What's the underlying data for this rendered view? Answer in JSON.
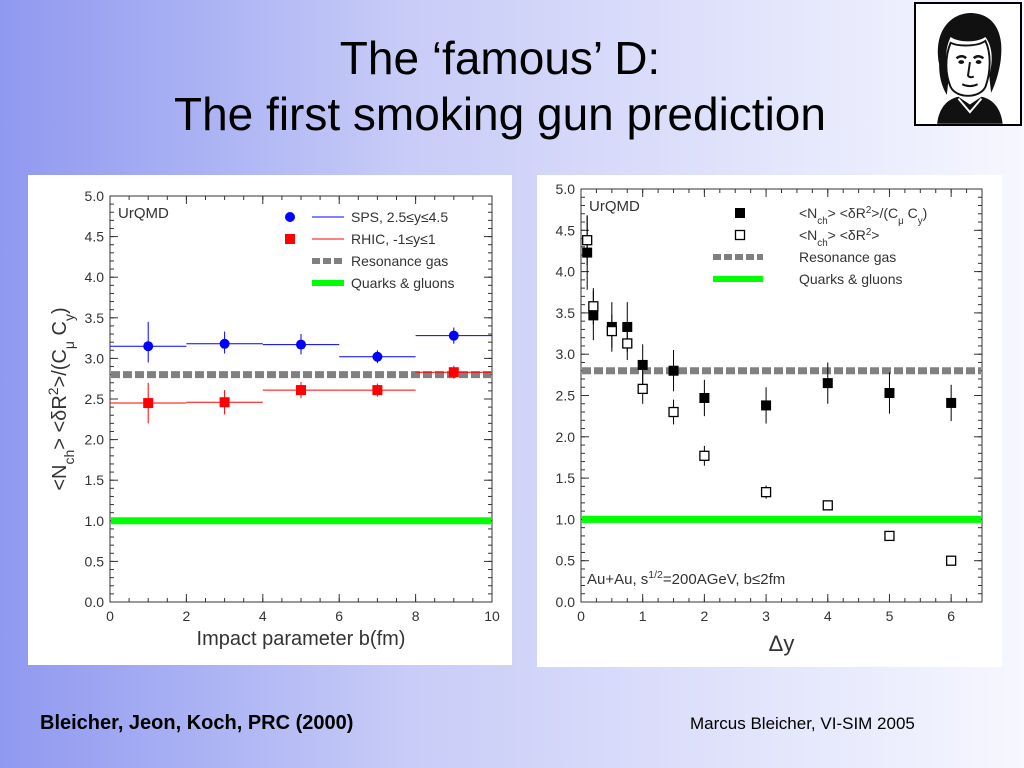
{
  "slide": {
    "title_line1": "The ‘famous’ D:",
    "title_line2": "The first smoking gun prediction",
    "citation": "Bleicher, Jeon, Koch, PRC (2000)",
    "footer": "Marcus Bleicher, VI-SIM 2005",
    "logo_icon": "goethe-portrait-icon"
  },
  "chart_data": [
    {
      "type": "scatter",
      "label": "UrQMD",
      "xlabel": "Impact parameter b(fm)",
      "ylabel": "<Nch> <δR2>/(Cμ Cy)",
      "xlim": [
        0,
        10
      ],
      "ylim": [
        0,
        5
      ],
      "xticks": [
        0,
        2,
        4,
        6,
        8,
        10
      ],
      "yticks": [
        "0.0",
        "0.5",
        "1.0",
        "1.5",
        "2.0",
        "2.5",
        "3.0",
        "3.5",
        "4.0",
        "4.5",
        "5.0"
      ],
      "grid": false,
      "legend_position": "top-right",
      "series": [
        {
          "name": "SPS, 2.5<y<4.5",
          "color": "#0000ff",
          "marker": "circle",
          "points": [
            {
              "x": 1,
              "y": 3.15,
              "xerr": 1,
              "yerr_low": 0.2,
              "yerr_high": 0.3
            },
            {
              "x": 3,
              "y": 3.18,
              "xerr": 1,
              "yerr_low": 0.12,
              "yerr_high": 0.15
            },
            {
              "x": 5,
              "y": 3.17,
              "xerr": 1,
              "yerr_low": 0.12,
              "yerr_high": 0.13
            },
            {
              "x": 7,
              "y": 3.02,
              "xerr": 1,
              "yerr_low": 0.08,
              "yerr_high": 0.08
            },
            {
              "x": 9,
              "y": 3.28,
              "xerr": 1,
              "yerr_low": 0.1,
              "yerr_high": 0.1
            }
          ]
        },
        {
          "name": "RHIC, -1<y<1",
          "color": "#ff0000",
          "marker": "square",
          "points": [
            {
              "x": 1,
              "y": 2.45,
              "xerr": 1,
              "yerr_low": 0.25,
              "yerr_high": 0.25
            },
            {
              "x": 3,
              "y": 2.46,
              "xerr": 1,
              "yerr_low": 0.15,
              "yerr_high": 0.15
            },
            {
              "x": 5,
              "y": 2.61,
              "xerr": 1,
              "yerr_low": 0.1,
              "yerr_high": 0.1
            },
            {
              "x": 7,
              "y": 2.61,
              "xerr": 1,
              "yerr_low": 0.08,
              "yerr_high": 0.08
            },
            {
              "x": 9,
              "y": 2.83,
              "xerr": 1,
              "yerr_low": 0.08,
              "yerr_high": 0.08
            }
          ]
        }
      ],
      "reference_lines": [
        {
          "name": "Resonance gas",
          "y": 2.8,
          "color": "#808080",
          "style": "dashed"
        },
        {
          "name": "Quarks & gluons",
          "y": 1.0,
          "color": "#00ff00",
          "style": "solid"
        }
      ]
    },
    {
      "type": "scatter",
      "label": "UrQMD",
      "annotation": "Au+Au, s1/2=200AGeV, b<2fm",
      "xlabel": "Δy",
      "xlim": [
        0,
        6.5
      ],
      "ylim": [
        0,
        5
      ],
      "xticks": [
        0,
        1,
        2,
        3,
        4,
        5,
        6
      ],
      "yticks": [
        "0.0",
        "0.5",
        "1.0",
        "1.5",
        "2.0",
        "2.5",
        "3.0",
        "3.5",
        "4.0",
        "4.5",
        "5.0"
      ],
      "grid": false,
      "legend_position": "top-right",
      "series": [
        {
          "name": "<Nch> <δR2>/(Cμ Cy)",
          "color": "#000000",
          "marker": "filled-square",
          "points": [
            {
              "x": 0.1,
              "y": 4.23,
              "yerr_low": 0.45,
              "yerr_high": 0.45
            },
            {
              "x": 0.2,
              "y": 3.47,
              "yerr_low": 0.3,
              "yerr_high": 0.3
            },
            {
              "x": 0.5,
              "y": 3.33,
              "yerr_low": 0.3,
              "yerr_high": 0.3
            },
            {
              "x": 0.75,
              "y": 3.33,
              "yerr_low": 0.3,
              "yerr_high": 0.3
            },
            {
              "x": 1.0,
              "y": 2.87,
              "yerr_low": 0.25,
              "yerr_high": 0.25
            },
            {
              "x": 1.5,
              "y": 2.8,
              "yerr_low": 0.25,
              "yerr_high": 0.25
            },
            {
              "x": 2.0,
              "y": 2.47,
              "yerr_low": 0.22,
              "yerr_high": 0.22
            },
            {
              "x": 3.0,
              "y": 2.38,
              "yerr_low": 0.22,
              "yerr_high": 0.22
            },
            {
              "x": 4.0,
              "y": 2.65,
              "yerr_low": 0.25,
              "yerr_high": 0.25
            },
            {
              "x": 5.0,
              "y": 2.53,
              "yerr_low": 0.25,
              "yerr_high": 0.25
            },
            {
              "x": 6.0,
              "y": 2.41,
              "yerr_low": 0.22,
              "yerr_high": 0.22
            }
          ]
        },
        {
          "name": "<Nch> <δR2>",
          "color": "#000000",
          "marker": "open-square",
          "points": [
            {
              "x": 0.1,
              "y": 4.38,
              "yerr_low": 0.3,
              "yerr_high": 0.3
            },
            {
              "x": 0.2,
              "y": 3.58,
              "yerr_low": 0.22,
              "yerr_high": 0.22
            },
            {
              "x": 0.5,
              "y": 3.28,
              "yerr_low": 0.2,
              "yerr_high": 0.2
            },
            {
              "x": 0.75,
              "y": 3.13,
              "yerr_low": 0.2,
              "yerr_high": 0.2
            },
            {
              "x": 1.0,
              "y": 2.58,
              "yerr_low": 0.18,
              "yerr_high": 0.18
            },
            {
              "x": 1.5,
              "y": 2.3,
              "yerr_low": 0.15,
              "yerr_high": 0.15
            },
            {
              "x": 2.0,
              "y": 1.77,
              "yerr_low": 0.12,
              "yerr_high": 0.12
            },
            {
              "x": 3.0,
              "y": 1.33,
              "yerr_low": 0.08,
              "yerr_high": 0.08
            },
            {
              "x": 4.0,
              "y": 1.17,
              "yerr_low": 0.06,
              "yerr_high": 0.06
            },
            {
              "x": 5.0,
              "y": 0.8,
              "yerr_low": 0.04,
              "yerr_high": 0.04
            },
            {
              "x": 6.0,
              "y": 0.5,
              "yerr_low": 0.03,
              "yerr_high": 0.03
            }
          ]
        }
      ],
      "reference_lines": [
        {
          "name": "Resonance gas",
          "y": 2.8,
          "color": "#808080",
          "style": "dashed"
        },
        {
          "name": "Quarks & gluons",
          "y": 1.0,
          "color": "#00ff00",
          "style": "solid"
        }
      ]
    }
  ]
}
